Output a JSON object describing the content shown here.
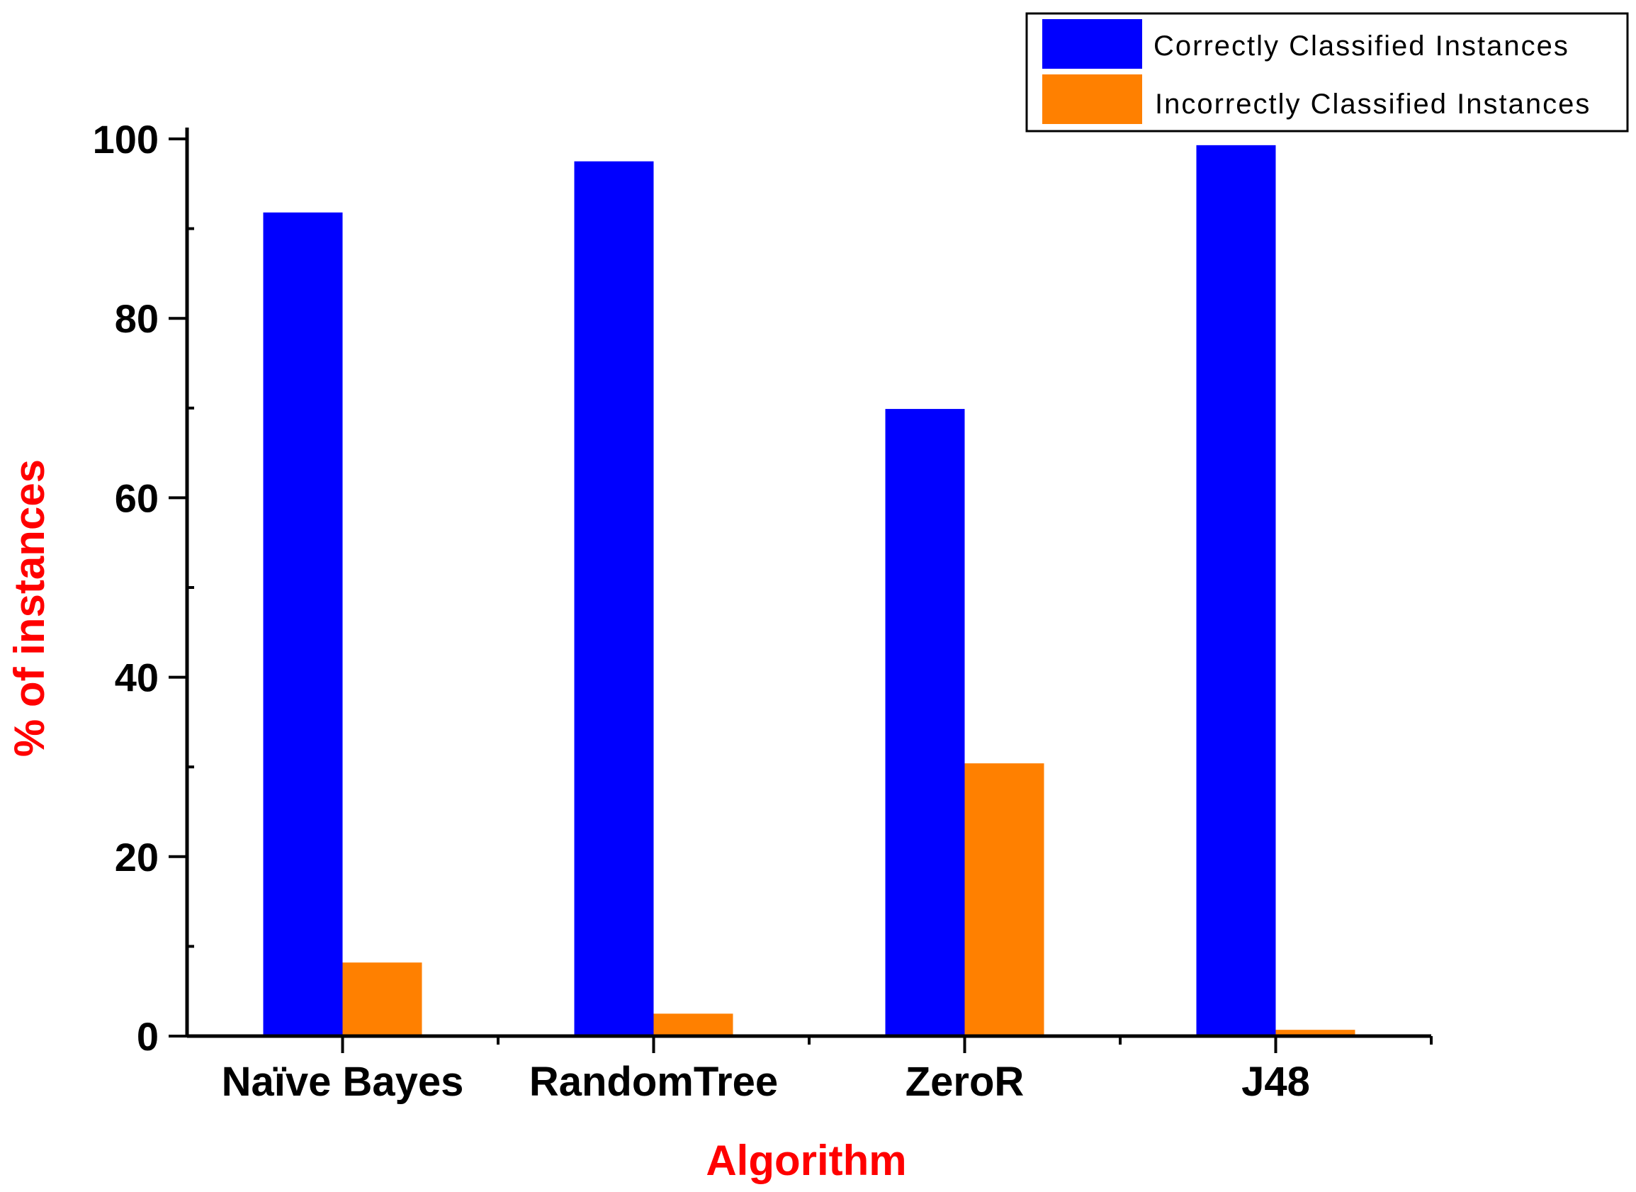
{
  "chart_data": {
    "type": "bar",
    "title": "",
    "xlabel": "Algorithm",
    "ylabel": "% of instances",
    "categories": [
      "Naïve Bayes",
      "RandomTree",
      "ZeroR",
      "J48"
    ],
    "series": [
      {
        "name": "Correctly Classified Instances",
        "color": "#0000ff",
        "values": [
          91.8,
          97.5,
          69.9,
          99.3
        ]
      },
      {
        "name": "Incorrectly Classified Instances",
        "color": "#ff8000",
        "values": [
          8.2,
          2.5,
          30.4,
          0.7
        ]
      }
    ],
    "ylim": [
      0,
      100
    ],
    "yticks": [
      "0",
      "20",
      "40",
      "60",
      "80",
      "100"
    ],
    "grid": false,
    "legend_position": "top-right",
    "axis_title_color": "#ff0000"
  }
}
